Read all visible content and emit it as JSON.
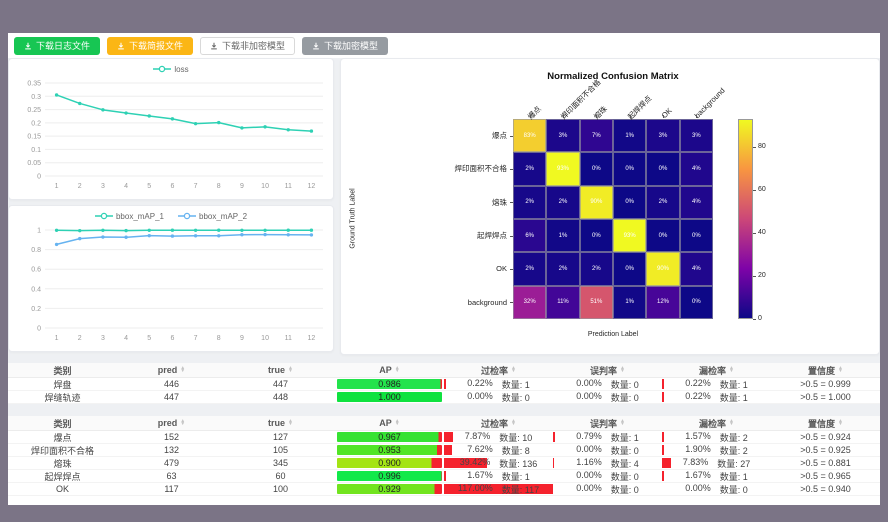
{
  "toolbar": {
    "buttons": [
      {
        "label": "下载日志文件",
        "variant": "green"
      },
      {
        "label": "下载简报文件",
        "variant": "orange"
      },
      {
        "label": "下载非加密模型",
        "variant": "white"
      },
      {
        "label": "下载加密模型",
        "variant": "gray"
      }
    ]
  },
  "colors": {
    "accent_green": "#17c653",
    "accent_orange": "#fbb615",
    "accent_gray": "#969ba1",
    "rate_bar_red": "#f5222d",
    "series_teal": "#2ed1b4",
    "series_blue": "#66b3f0",
    "chrome": "#7b7486"
  },
  "chart_data": [
    {
      "type": "line",
      "title": "",
      "legend": [
        "loss"
      ],
      "legend_position": "top",
      "grid": true,
      "x": [
        1,
        2,
        3,
        4,
        5,
        6,
        7,
        8,
        9,
        10,
        11,
        12
      ],
      "series": [
        {
          "name": "loss",
          "color": "#2ed1b4",
          "values": [
            0.305,
            0.273,
            0.249,
            0.237,
            0.226,
            0.215,
            0.197,
            0.201,
            0.181,
            0.185,
            0.174,
            0.169
          ]
        }
      ],
      "ylim": [
        0,
        0.35
      ],
      "yticks": [
        0,
        0.05,
        0.1,
        0.15,
        0.2,
        0.25,
        0.3,
        0.35
      ],
      "ytick_labels": [
        "0",
        "0.05",
        "0.1",
        "0.15",
        "0.2",
        "0.25",
        "0.3",
        "0.35"
      ],
      "xlabel": "",
      "ylabel": ""
    },
    {
      "type": "line",
      "title": "",
      "legend": [
        "bbox_mAP_1",
        "bbox_mAP_2"
      ],
      "legend_position": "top",
      "grid": true,
      "x": [
        1,
        2,
        3,
        4,
        5,
        6,
        7,
        8,
        9,
        10,
        11,
        12
      ],
      "series": [
        {
          "name": "bbox_mAP_1",
          "color": "#2ed1b4",
          "values": [
            0.997,
            0.993,
            0.997,
            0.994,
            0.997,
            0.998,
            0.997,
            0.998,
            0.997,
            0.997,
            0.998,
            0.998
          ]
        },
        {
          "name": "bbox_mAP_2",
          "color": "#66b3f0",
          "values": [
            0.853,
            0.912,
            0.928,
            0.926,
            0.942,
            0.938,
            0.941,
            0.941,
            0.952,
            0.953,
            0.951,
            0.95
          ]
        }
      ],
      "ylim": [
        0,
        1
      ],
      "yticks": [
        0,
        0.2,
        0.4,
        0.6,
        0.8,
        1
      ],
      "ytick_labels": [
        "0",
        "0.2",
        "0.4",
        "0.6",
        "0.8",
        "1"
      ],
      "xlabel": "",
      "ylabel": ""
    },
    {
      "type": "heatmap",
      "title": "Normalized Confusion Matrix",
      "xlabel": "Prediction Label",
      "ylabel": "Ground Truth Label",
      "labels": [
        "爆点",
        "焊印面积不合格",
        "熔珠",
        "起焊焊点",
        "OK",
        "background"
      ],
      "values_percent": [
        [
          83,
          3,
          7,
          1,
          3,
          3
        ],
        [
          2,
          93,
          0,
          0,
          0,
          4
        ],
        [
          2,
          2,
          90,
          0,
          2,
          4
        ],
        [
          6,
          1,
          0,
          93,
          0,
          0
        ],
        [
          2,
          2,
          2,
          0,
          90,
          4
        ],
        [
          32,
          11,
          51,
          1,
          12,
          0
        ]
      ],
      "colormap": "plasma",
      "vmax": 93,
      "colorbar_ticks": [
        0,
        20,
        40,
        60,
        80
      ]
    }
  ],
  "tables": [
    {
      "headers": [
        "类别",
        "pred",
        "true",
        "AP",
        "过检率",
        "误判率",
        "漏检率",
        "置信度"
      ],
      "sortable": [
        false,
        true,
        true,
        true,
        true,
        true,
        true,
        true
      ],
      "rows": [
        {
          "category": "焊盘",
          "pred": "446",
          "true": "447",
          "ap": {
            "text": "0.986",
            "value": 0.986,
            "color": "#23e34c"
          },
          "rates": [
            {
              "text": "0.22%",
              "qty": "数量: 1",
              "pct": 0.22
            },
            {
              "text": "0.00%",
              "qty": "数量: 0",
              "pct": 0
            },
            {
              "text": "0.22%",
              "qty": "数量: 1",
              "pct": 0.22
            }
          ],
          "confidence": ">0.5 = 0.999"
        },
        {
          "category": "焊缝轨迹",
          "pred": "447",
          "true": "448",
          "ap": {
            "text": "1.000",
            "value": 1.0,
            "color": "#0fe23f"
          },
          "rates": [
            {
              "text": "0.00%",
              "qty": "数量: 0",
              "pct": 0
            },
            {
              "text": "0.00%",
              "qty": "数量: 0",
              "pct": 0
            },
            {
              "text": "0.22%",
              "qty": "数量: 1",
              "pct": 0.22
            }
          ],
          "confidence": ">0.5 = 1.000"
        }
      ]
    },
    {
      "headers": [
        "类别",
        "pred",
        "true",
        "AP",
        "过检率",
        "误判率",
        "漏检率",
        "置信度"
      ],
      "sortable": [
        false,
        true,
        true,
        true,
        true,
        true,
        true,
        true
      ],
      "rows": [
        {
          "category": "爆点",
          "pred": "152",
          "true": "127",
          "ap": {
            "text": "0.967",
            "value": 0.967,
            "color": "#36e232"
          },
          "rates": [
            {
              "text": "7.87%",
              "qty": "数量: 10",
              "pct": 7.87
            },
            {
              "text": "0.79%",
              "qty": "数量: 1",
              "pct": 0.79
            },
            {
              "text": "1.57%",
              "qty": "数量: 2",
              "pct": 1.57
            }
          ],
          "confidence": ">0.5 = 0.924"
        },
        {
          "category": "焊印面积不合格",
          "pred": "132",
          "true": "105",
          "ap": {
            "text": "0.953",
            "value": 0.953,
            "color": "#52e526"
          },
          "rates": [
            {
              "text": "7.62%",
              "qty": "数量: 8",
              "pct": 7.62
            },
            {
              "text": "0.00%",
              "qty": "数量: 0",
              "pct": 0
            },
            {
              "text": "1.90%",
              "qty": "数量: 2",
              "pct": 1.9
            }
          ],
          "confidence": ">0.5 = 0.925"
        },
        {
          "category": "熔珠",
          "pred": "479",
          "true": "345",
          "ap": {
            "text": "0.900",
            "value": 0.9,
            "color": "#a4e414"
          },
          "rates": [
            {
              "text": "39.42%",
              "qty": "数量: 136",
              "pct": 39.42
            },
            {
              "text": "1.16%",
              "qty": "数量: 4",
              "pct": 1.16
            },
            {
              "text": "7.83%",
              "qty": "数量: 27",
              "pct": 7.83
            }
          ],
          "confidence": ">0.5 = 0.881"
        },
        {
          "category": "起焊焊点",
          "pred": "63",
          "true": "60",
          "ap": {
            "text": "0.996",
            "value": 0.996,
            "color": "#12e94a"
          },
          "rates": [
            {
              "text": "1.67%",
              "qty": "数量: 1",
              "pct": 1.67
            },
            {
              "text": "0.00%",
              "qty": "数量: 0",
              "pct": 0
            },
            {
              "text": "1.67%",
              "qty": "数量: 1",
              "pct": 1.67
            }
          ],
          "confidence": ">0.5 = 0.965"
        },
        {
          "category": "OK",
          "pred": "117",
          "true": "100",
          "ap": {
            "text": "0.929",
            "value": 0.929,
            "color": "#72e41f"
          },
          "rates": [
            {
              "text": "117.00%",
              "qty": "数量: 117",
              "pct": 117
            },
            {
              "text": "0.00%",
              "qty": "数量: 0",
              "pct": 0
            },
            {
              "text": "0.00%",
              "qty": "数量: 0",
              "pct": 0
            }
          ],
          "confidence": ">0.5 = 0.940"
        }
      ]
    }
  ]
}
